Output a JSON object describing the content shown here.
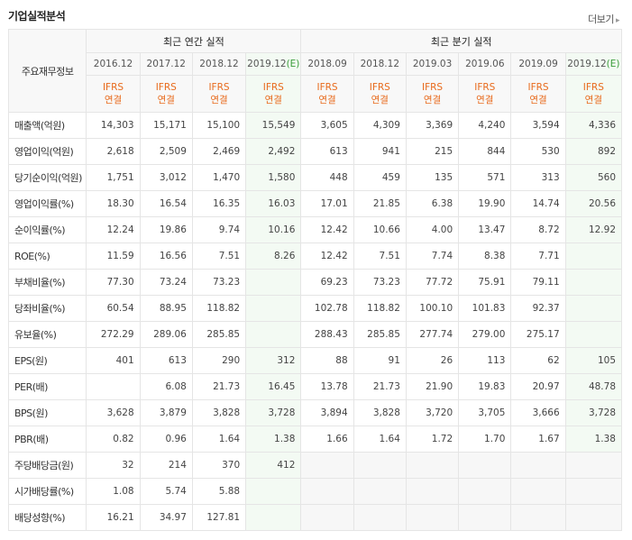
{
  "header": {
    "title": "기업실적분석",
    "more_label": "더보기"
  },
  "table": {
    "row_header": "주요재무정보",
    "groups": [
      {
        "label": "최근 연간 실적"
      },
      {
        "label": "최근 분기 실적"
      }
    ],
    "periods": [
      {
        "label": "2016.12",
        "est": ""
      },
      {
        "label": "2017.12",
        "est": ""
      },
      {
        "label": "2018.12",
        "est": ""
      },
      {
        "label": "2019.12",
        "est": "(E)"
      },
      {
        "label": "2018.09",
        "est": ""
      },
      {
        "label": "2018.12",
        "est": ""
      },
      {
        "label": "2019.03",
        "est": ""
      },
      {
        "label": "2019.06",
        "est": ""
      },
      {
        "label": "2019.09",
        "est": ""
      },
      {
        "label": "2019.12",
        "est": "(E)"
      }
    ],
    "ifrs": {
      "line1": "IFRS",
      "line2": "연결"
    },
    "rows": [
      {
        "label": "매출액(억원)",
        "values": [
          "14,303",
          "15,171",
          "15,100",
          "15,549",
          "3,605",
          "4,309",
          "3,369",
          "4,240",
          "3,594",
          "4,336"
        ]
      },
      {
        "label": "영업이익(억원)",
        "values": [
          "2,618",
          "2,509",
          "2,469",
          "2,492",
          "613",
          "941",
          "215",
          "844",
          "530",
          "892"
        ]
      },
      {
        "label": "당기순이익(억원)",
        "values": [
          "1,751",
          "3,012",
          "1,470",
          "1,580",
          "448",
          "459",
          "135",
          "571",
          "313",
          "560"
        ]
      },
      {
        "label": "영업이익률(%)",
        "values": [
          "18.30",
          "16.54",
          "16.35",
          "16.03",
          "17.01",
          "21.85",
          "6.38",
          "19.90",
          "14.74",
          "20.56"
        ]
      },
      {
        "label": "순이익률(%)",
        "values": [
          "12.24",
          "19.86",
          "9.74",
          "10.16",
          "12.42",
          "10.66",
          "4.00",
          "13.47",
          "8.72",
          "12.92"
        ]
      },
      {
        "label": "ROE(%)",
        "values": [
          "11.59",
          "16.56",
          "7.51",
          "8.26",
          "12.42",
          "7.51",
          "7.74",
          "8.38",
          "7.71",
          ""
        ]
      },
      {
        "label": "부채비율(%)",
        "values": [
          "77.30",
          "73.24",
          "73.23",
          "",
          "69.23",
          "73.23",
          "77.72",
          "75.91",
          "79.11",
          ""
        ]
      },
      {
        "label": "당좌비율(%)",
        "values": [
          "60.54",
          "88.95",
          "118.82",
          "",
          "102.78",
          "118.82",
          "100.10",
          "101.83",
          "92.37",
          ""
        ]
      },
      {
        "label": "유보율(%)",
        "values": [
          "272.29",
          "289.06",
          "285.85",
          "",
          "288.43",
          "285.85",
          "277.74",
          "279.00",
          "275.17",
          ""
        ]
      },
      {
        "label": "EPS(원)",
        "values": [
          "401",
          "613",
          "290",
          "312",
          "88",
          "91",
          "26",
          "113",
          "62",
          "105"
        ]
      },
      {
        "label": "PER(배)",
        "values": [
          "",
          "6.08",
          "21.73",
          "16.45",
          "13.78",
          "21.73",
          "21.90",
          "19.83",
          "20.97",
          "48.78"
        ]
      },
      {
        "label": "BPS(원)",
        "values": [
          "3,628",
          "3,879",
          "3,828",
          "3,728",
          "3,894",
          "3,828",
          "3,720",
          "3,705",
          "3,666",
          "3,728"
        ]
      },
      {
        "label": "PBR(배)",
        "values": [
          "0.82",
          "0.96",
          "1.64",
          "1.38",
          "1.66",
          "1.64",
          "1.72",
          "1.70",
          "1.67",
          "1.38"
        ]
      },
      {
        "label": "주당배당금(원)",
        "values": [
          "32",
          "214",
          "370",
          "412",
          "",
          "",
          "",
          "",
          "",
          ""
        ]
      },
      {
        "label": "시가배당률(%)",
        "values": [
          "1.08",
          "5.74",
          "5.88",
          "",
          "",
          "",
          "",
          "",
          "",
          ""
        ]
      },
      {
        "label": "배당성향(%)",
        "values": [
          "16.21",
          "34.97",
          "127.81",
          "",
          "",
          "",
          "",
          "",
          "",
          ""
        ]
      }
    ]
  }
}
